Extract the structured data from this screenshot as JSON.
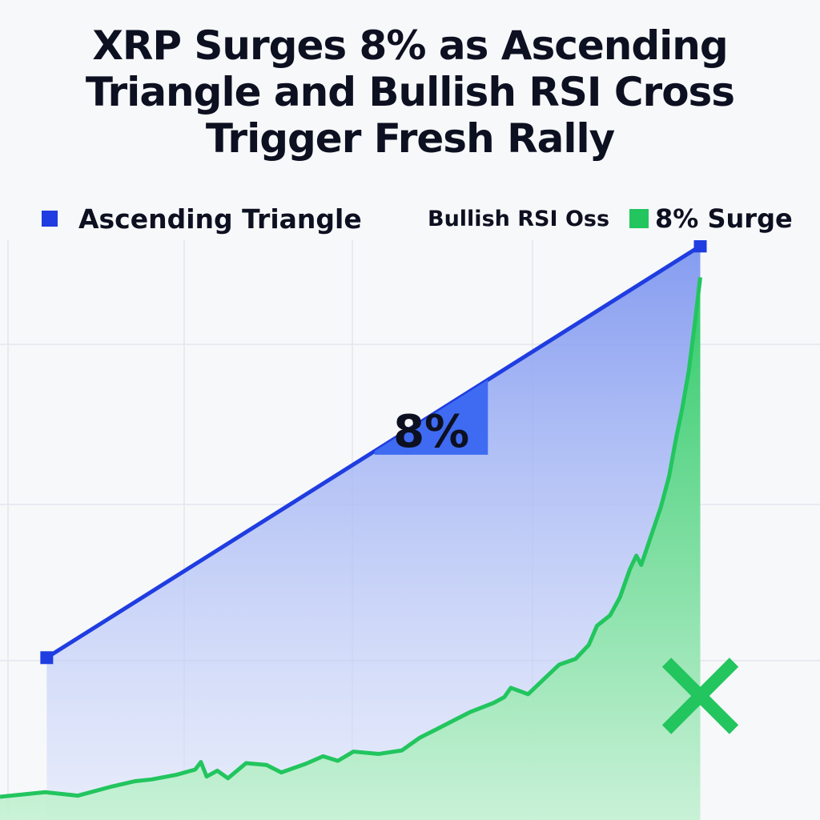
{
  "header": {
    "title_lines": [
      "XRP Surges 8% as Ascending",
      "Triangle and Bullish RSI Cross",
      "Trigger Fresh Rally"
    ]
  },
  "colors": {
    "triangle": "#1f3de0",
    "triangle_fill": "#8ea3f2",
    "bar": "#3f6bf2",
    "surge": "#22c55e",
    "surge_fill": "#5fdc8a",
    "text": "#0d1020",
    "grid": "#e3e6ec"
  },
  "chart_data": {
    "type": "line",
    "title": "XRP Surges 8% as Ascending Triangle and Bullish RSI Cross Trigger Fresh Rally",
    "xlabel": "",
    "ylabel": "",
    "x_range": [
      0,
      100
    ],
    "ylim": [
      0,
      100
    ],
    "grid": true,
    "legend": {
      "placement": "top",
      "entries": [
        "Ascending Triangle",
        "Bullish RSI Oss",
        "8% Surge"
      ]
    },
    "series": [
      {
        "name": "Ascending Triangle",
        "kind": "line-area",
        "points": [
          [
            5.7,
            28
          ],
          [
            85.4,
            99
          ]
        ]
      },
      {
        "name": "8% Surge",
        "kind": "area",
        "points": [
          [
            0,
            4
          ],
          [
            5.5,
            4.8
          ],
          [
            9.5,
            4.2
          ],
          [
            13.7,
            5.8
          ],
          [
            16.5,
            6.7
          ],
          [
            18.5,
            7
          ],
          [
            21.5,
            7.8
          ],
          [
            23.8,
            8.7
          ],
          [
            24.5,
            10
          ],
          [
            25.2,
            7.5
          ],
          [
            26.5,
            8.5
          ],
          [
            27.8,
            7.2
          ],
          [
            30,
            9.8
          ],
          [
            32.5,
            9.5
          ],
          [
            34.3,
            8.2
          ],
          [
            37.3,
            9.7
          ],
          [
            39.4,
            11
          ],
          [
            41.2,
            10.2
          ],
          [
            43.1,
            11.8
          ],
          [
            46.2,
            11.4
          ],
          [
            49,
            12
          ],
          [
            51.2,
            14.2
          ],
          [
            53.3,
            15.7
          ],
          [
            55.5,
            17.3
          ],
          [
            57.3,
            18.6
          ],
          [
            60.2,
            20.2
          ],
          [
            61.5,
            21.2
          ],
          [
            62.3,
            22.8
          ],
          [
            64.4,
            21.7
          ],
          [
            66.7,
            24.8
          ],
          [
            68.2,
            26.8
          ],
          [
            70.2,
            27.8
          ],
          [
            71.8,
            30.2
          ],
          [
            72.8,
            33.5
          ],
          [
            74.4,
            35.3
          ],
          [
            75.6,
            38.4
          ],
          [
            76.8,
            43.2
          ],
          [
            77.6,
            45.6
          ],
          [
            78.2,
            44
          ],
          [
            79.4,
            49
          ],
          [
            80.6,
            54
          ],
          [
            81.6,
            59.3
          ],
          [
            82.4,
            65.5
          ],
          [
            83.2,
            71
          ],
          [
            84,
            77.5
          ],
          [
            84.7,
            85.3
          ],
          [
            85.4,
            93.6
          ],
          [
            85.4,
            0
          ]
        ]
      }
    ],
    "bars": [
      {
        "label": "8%",
        "value": 8,
        "x_start": 45.7,
        "x_end": 59.5,
        "top": 63
      }
    ],
    "annotations": [
      {
        "kind": "x-marker",
        "x": 85.4,
        "y": 21.4
      }
    ]
  }
}
